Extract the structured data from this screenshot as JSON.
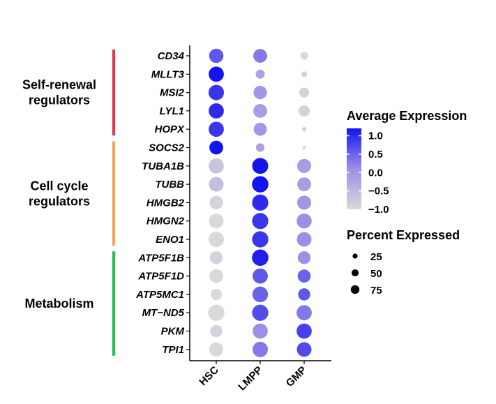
{
  "chart_data": {
    "type": "scatter",
    "subtype": "dot-plot",
    "genes": [
      "CD34",
      "MLLT3",
      "MSI2",
      "LYL1",
      "HOPX",
      "SOCS2",
      "TUBA1B",
      "TUBB",
      "HMGB2",
      "HMGN2",
      "ENO1",
      "ATP5F1B",
      "ATP5F1D",
      "ATP5MC1",
      "MT−ND5",
      "PKM",
      "TPI1"
    ],
    "cell_types": [
      "HSC",
      "LMPP",
      "GMP"
    ],
    "avg_expression": [
      [
        0.6,
        0.3,
        -1.0
      ],
      [
        1.2,
        -0.2,
        -0.9
      ],
      [
        0.9,
        0.0,
        -0.9
      ],
      [
        1.0,
        -0.1,
        -0.9
      ],
      [
        0.9,
        0.0,
        -0.9
      ],
      [
        1.2,
        -0.2,
        -1.0
      ],
      [
        -0.7,
        1.2,
        -0.1
      ],
      [
        -0.6,
        1.2,
        -0.1
      ],
      [
        -0.9,
        1.0,
        0.0
      ],
      [
        -1.0,
        0.9,
        0.1
      ],
      [
        -1.0,
        0.9,
        0.1
      ],
      [
        -0.9,
        1.1,
        0.1
      ],
      [
        -1.0,
        0.6,
        0.5
      ],
      [
        -1.0,
        0.5,
        0.6
      ],
      [
        -1.0,
        0.7,
        0.3
      ],
      [
        -0.9,
        0.1,
        0.8
      ],
      [
        -1.0,
        0.3,
        0.7
      ]
    ],
    "pct_expressed": [
      [
        62,
        58,
        18
      ],
      [
        70,
        25,
        10
      ],
      [
        72,
        55,
        30
      ],
      [
        70,
        58,
        38
      ],
      [
        70,
        52,
        6
      ],
      [
        58,
        22,
        4
      ],
      [
        70,
        78,
        60
      ],
      [
        65,
        82,
        58
      ],
      [
        55,
        80,
        60
      ],
      [
        65,
        80,
        68
      ],
      [
        72,
        80,
        65
      ],
      [
        50,
        82,
        50
      ],
      [
        58,
        70,
        52
      ],
      [
        38,
        75,
        45
      ],
      [
        80,
        80,
        70
      ],
      [
        45,
        70,
        70
      ],
      [
        60,
        72,
        65
      ]
    ],
    "groups": [
      {
        "label_lines": [
          "Self-renewal",
          "regulators"
        ],
        "color": "#e0364f",
        "first": 0,
        "last": 4
      },
      {
        "label_lines": [
          "Cell cycle",
          "regulators"
        ],
        "color": "#f0a560",
        "first": 5,
        "last": 10
      },
      {
        "label_lines": [
          "Metabolism"
        ],
        "color": "#2bbb55",
        "first": 11,
        "last": 16
      }
    ],
    "color_legend": {
      "title": "Average Expression",
      "ticks": [
        1.0,
        0.5,
        0.0,
        -0.5,
        -1.0
      ],
      "tick_labels": [
        "1.0",
        "0.5",
        "0.0",
        "−0.5",
        "−1.0"
      ],
      "range": [
        -1.0,
        1.2
      ],
      "low_color": "#d9d9d9",
      "high_color": "#1414f0"
    },
    "size_legend": {
      "title": "Percent Expressed",
      "values": [
        25,
        50,
        75
      ],
      "labels": [
        "25",
        "50",
        "75"
      ]
    }
  }
}
